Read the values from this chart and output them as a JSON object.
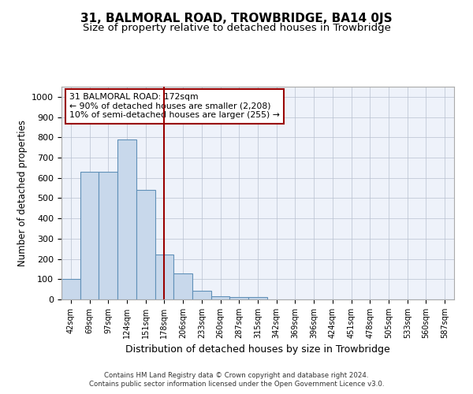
{
  "title": "31, BALMORAL ROAD, TROWBRIDGE, BA14 0JS",
  "subtitle": "Size of property relative to detached houses in Trowbridge",
  "xlabel": "Distribution of detached houses by size in Trowbridge",
  "ylabel": "Number of detached properties",
  "footer_line1": "Contains HM Land Registry data © Crown copyright and database right 2024.",
  "footer_line2": "Contains public sector information licensed under the Open Government Licence v3.0.",
  "bins": [
    "42sqm",
    "69sqm",
    "97sqm",
    "124sqm",
    "151sqm",
    "178sqm",
    "206sqm",
    "233sqm",
    "260sqm",
    "287sqm",
    "315sqm",
    "342sqm",
    "369sqm",
    "396sqm",
    "424sqm",
    "451sqm",
    "478sqm",
    "505sqm",
    "533sqm",
    "560sqm",
    "587sqm"
  ],
  "values": [
    100,
    630,
    630,
    790,
    540,
    220,
    130,
    42,
    15,
    10,
    10,
    0,
    0,
    0,
    0,
    0,
    0,
    0,
    0,
    0,
    0
  ],
  "bar_color": "#c8d8eb",
  "bar_edge_color": "#6090b8",
  "vline_x_index": 5,
  "vline_color": "#990000",
  "annotation_line1": "31 BALMORAL ROAD: 172sqm",
  "annotation_line2": "← 90% of detached houses are smaller (2,208)",
  "annotation_line3": "10% of semi-detached houses are larger (255) →",
  "annotation_box_color": "#990000",
  "ylim": [
    0,
    1050
  ],
  "yticks": [
    0,
    100,
    200,
    300,
    400,
    500,
    600,
    700,
    800,
    900,
    1000
  ],
  "bg_color": "#eef2fa",
  "grid_color": "#b8c0d0",
  "title_fontsize": 11,
  "subtitle_fontsize": 9.5,
  "xlabel_fontsize": 9,
  "ylabel_fontsize": 8.5
}
